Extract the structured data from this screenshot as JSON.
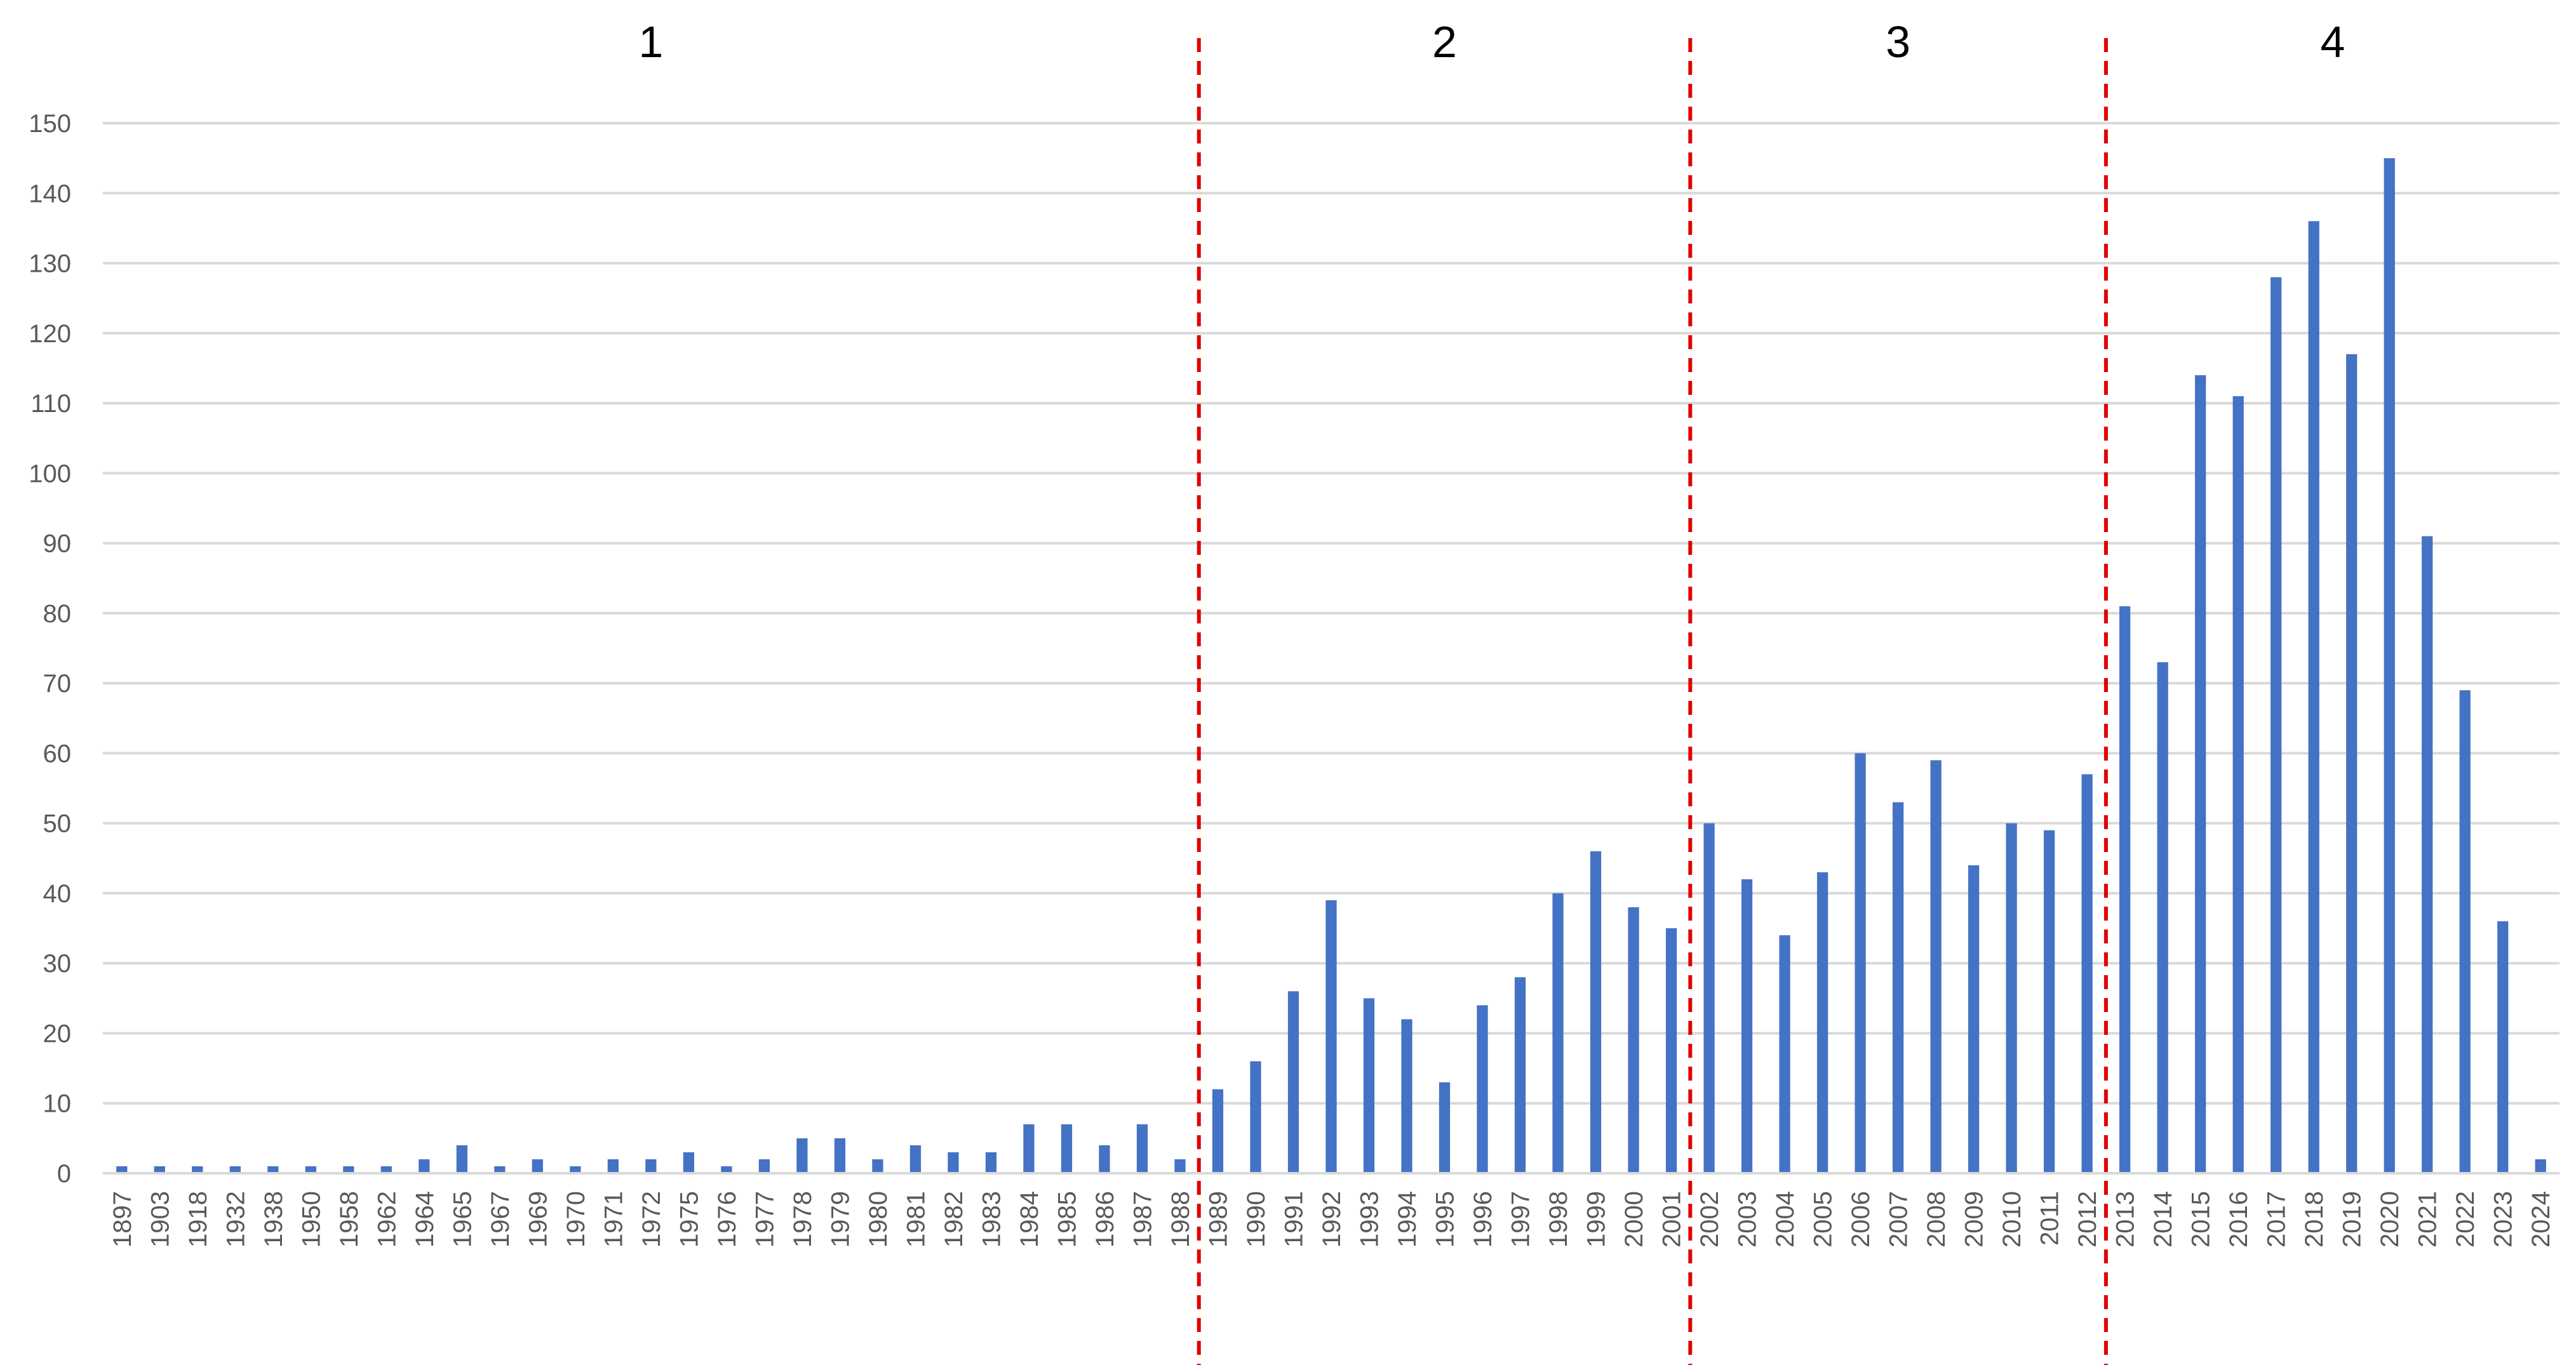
{
  "chart_data": {
    "type": "bar",
    "title": "",
    "xlabel": "",
    "ylabel": "",
    "ylim": [
      0,
      150
    ],
    "yticks": [
      0,
      10,
      20,
      30,
      40,
      50,
      60,
      70,
      80,
      90,
      100,
      110,
      120,
      130,
      140,
      150
    ],
    "grid": "horizontal",
    "legend": "none",
    "bar_color": "#4472C4",
    "divider_color": "#E00000",
    "categories": [
      "1897",
      "1903",
      "1918",
      "1932",
      "1938",
      "1950",
      "1958",
      "1962",
      "1964",
      "1965",
      "1967",
      "1969",
      "1970",
      "1971",
      "1972",
      "1975",
      "1976",
      "1977",
      "1978",
      "1979",
      "1980",
      "1981",
      "1982",
      "1983",
      "1984",
      "1985",
      "1986",
      "1987",
      "1988",
      "1989",
      "1990",
      "1991",
      "1992",
      "1993",
      "1994",
      "1995",
      "1996",
      "1997",
      "1998",
      "1999",
      "2000",
      "2001",
      "2002",
      "2003",
      "2004",
      "2005",
      "2006",
      "2007",
      "2008",
      "2009",
      "2010",
      "2011",
      "2012",
      "2013",
      "2014",
      "2015",
      "2016",
      "2017",
      "2018",
      "2019",
      "2020",
      "2021",
      "2022",
      "2023",
      "2024"
    ],
    "values": [
      1,
      1,
      1,
      1,
      1,
      1,
      1,
      1,
      2,
      4,
      1,
      2,
      1,
      2,
      2,
      3,
      1,
      2,
      5,
      5,
      2,
      4,
      3,
      3,
      7,
      7,
      4,
      7,
      2,
      12,
      16,
      26,
      39,
      25,
      22,
      13,
      24,
      28,
      40,
      46,
      38,
      35,
      50,
      42,
      34,
      43,
      60,
      53,
      59,
      44,
      50,
      49,
      57,
      81,
      73,
      114,
      111,
      128,
      136,
      117,
      145,
      91,
      69,
      36,
      2
    ],
    "phases": [
      {
        "label": "1",
        "start": "1897",
        "end": "1988"
      },
      {
        "label": "2",
        "start": "1989",
        "end": "2001"
      },
      {
        "label": "3",
        "start": "2002",
        "end": "2012"
      },
      {
        "label": "4",
        "start": "2013",
        "end": "2024"
      }
    ]
  }
}
